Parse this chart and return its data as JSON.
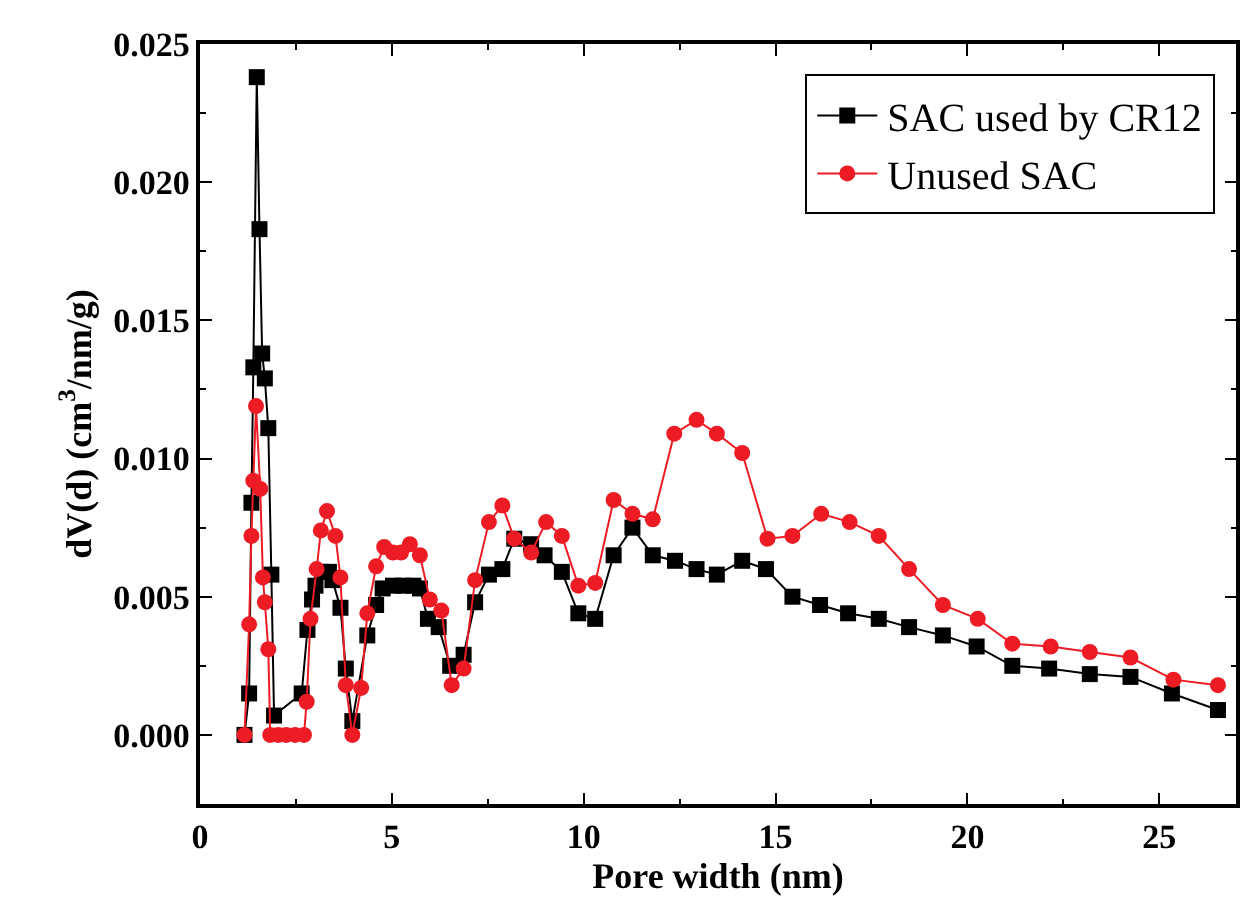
{
  "chart_data": {
    "type": "line",
    "xlabel": "Pore width (nm)",
    "ylabel": "dV(d) (cm$^{3}$/nm/g)",
    "xlim": [
      0,
      27
    ],
    "ylim": [
      -0.0025,
      0.025
    ],
    "xticks": [
      0,
      5,
      10,
      15,
      20,
      25
    ],
    "yticks": [
      {
        "value": 0,
        "label": "0.000"
      },
      {
        "value": 0.005,
        "label": "0.005"
      },
      {
        "value": 0.01,
        "label": "0.010"
      },
      {
        "value": 0.015,
        "label": "0.015"
      },
      {
        "value": 0.02,
        "label": "0.020"
      },
      {
        "value": 0.025,
        "label": "0.025"
      }
    ],
    "legend": "top right",
    "line_style": "solid",
    "series": [
      {
        "name": "SAC used by CR12",
        "color": "#000000",
        "marker": "square",
        "x": [
          1.16,
          1.28,
          1.34,
          1.39,
          1.48,
          1.55,
          1.62,
          1.69,
          1.78,
          1.86,
          1.93,
          2.65,
          2.8,
          2.92,
          3.01,
          3.18,
          3.36,
          3.45,
          3.66,
          3.8,
          3.97,
          4.36,
          4.59,
          4.76,
          5.03,
          5.29,
          5.56,
          5.73,
          5.94,
          6.22,
          6.52,
          6.87,
          7.17,
          7.53,
          7.88,
          8.19,
          8.63,
          8.98,
          9.43,
          9.86,
          10.3,
          10.78,
          11.27,
          11.8,
          12.38,
          12.94,
          13.47,
          14.13,
          14.75,
          15.44,
          16.16,
          16.89,
          17.69,
          18.48,
          19.36,
          20.24,
          21.17,
          22.13,
          23.19,
          24.25,
          25.33,
          26.53
        ],
        "values": [
          0,
          0.0015,
          0.0084,
          0.0133,
          0.0238,
          0.0183,
          0.0138,
          0.0129,
          0.0111,
          0.0058,
          0.0007,
          0.0015,
          0.0038,
          0.0049,
          0.0054,
          0.0059,
          0.0059,
          0.0056,
          0.0046,
          0.0024,
          0.0005,
          0.0036,
          0.0047,
          0.0053,
          0.0054,
          0.0054,
          0.0054,
          0.0053,
          0.0042,
          0.0039,
          0.0025,
          0.0029,
          0.0048,
          0.0058,
          0.006,
          0.0071,
          0.0069,
          0.0065,
          0.0059,
          0.0044,
          0.0042,
          0.0065,
          0.0075,
          0.0065,
          0.0063,
          0.006,
          0.0058,
          0.0063,
          0.006,
          0.005,
          0.0047,
          0.0044,
          0.0042,
          0.0039,
          0.0036,
          0.0032,
          0.0025,
          0.0024,
          0.0022,
          0.0021,
          0.0015,
          0.0009
        ]
      },
      {
        "name": "Unused SAC",
        "color": "#ed1c24",
        "marker": "circle",
        "x": [
          1.16,
          1.28,
          1.34,
          1.39,
          1.46,
          1.57,
          1.64,
          1.69,
          1.78,
          1.83,
          2.04,
          2.25,
          2.48,
          2.71,
          2.78,
          2.88,
          3.04,
          3.15,
          3.31,
          3.53,
          3.66,
          3.8,
          3.97,
          4.2,
          4.36,
          4.59,
          4.8,
          5.03,
          5.24,
          5.47,
          5.73,
          5.99,
          6.29,
          6.56,
          6.87,
          7.17,
          7.53,
          7.88,
          8.19,
          8.63,
          9.02,
          9.43,
          9.86,
          10.3,
          10.78,
          11.27,
          11.8,
          12.36,
          12.94,
          13.47,
          14.13,
          14.79,
          15.44,
          16.19,
          16.93,
          17.69,
          18.48,
          19.36,
          20.27,
          21.17,
          22.17,
          23.19,
          24.25,
          25.37,
          26.53
        ],
        "values": [
          0,
          0.004,
          0.0072,
          0.0092,
          0.0119,
          0.0089,
          0.0057,
          0.0048,
          0.0031,
          0,
          0,
          0,
          0,
          0,
          0.0012,
          0.0042,
          0.006,
          0.0074,
          0.0081,
          0.0072,
          0.0057,
          0.0018,
          0,
          0.0017,
          0.0044,
          0.0061,
          0.0068,
          0.0066,
          0.0066,
          0.0069,
          0.0065,
          0.0049,
          0.0045,
          0.0018,
          0.0024,
          0.0056,
          0.0077,
          0.0083,
          0.0071,
          0.0066,
          0.0077,
          0.0072,
          0.0054,
          0.0055,
          0.0085,
          0.008,
          0.0078,
          0.0109,
          0.0114,
          0.0109,
          0.0102,
          0.0071,
          0.0072,
          0.008,
          0.0077,
          0.0072,
          0.006,
          0.0047,
          0.0042,
          0.0033,
          0.0032,
          0.003,
          0.0028,
          0.002,
          0.0018
        ]
      }
    ]
  }
}
